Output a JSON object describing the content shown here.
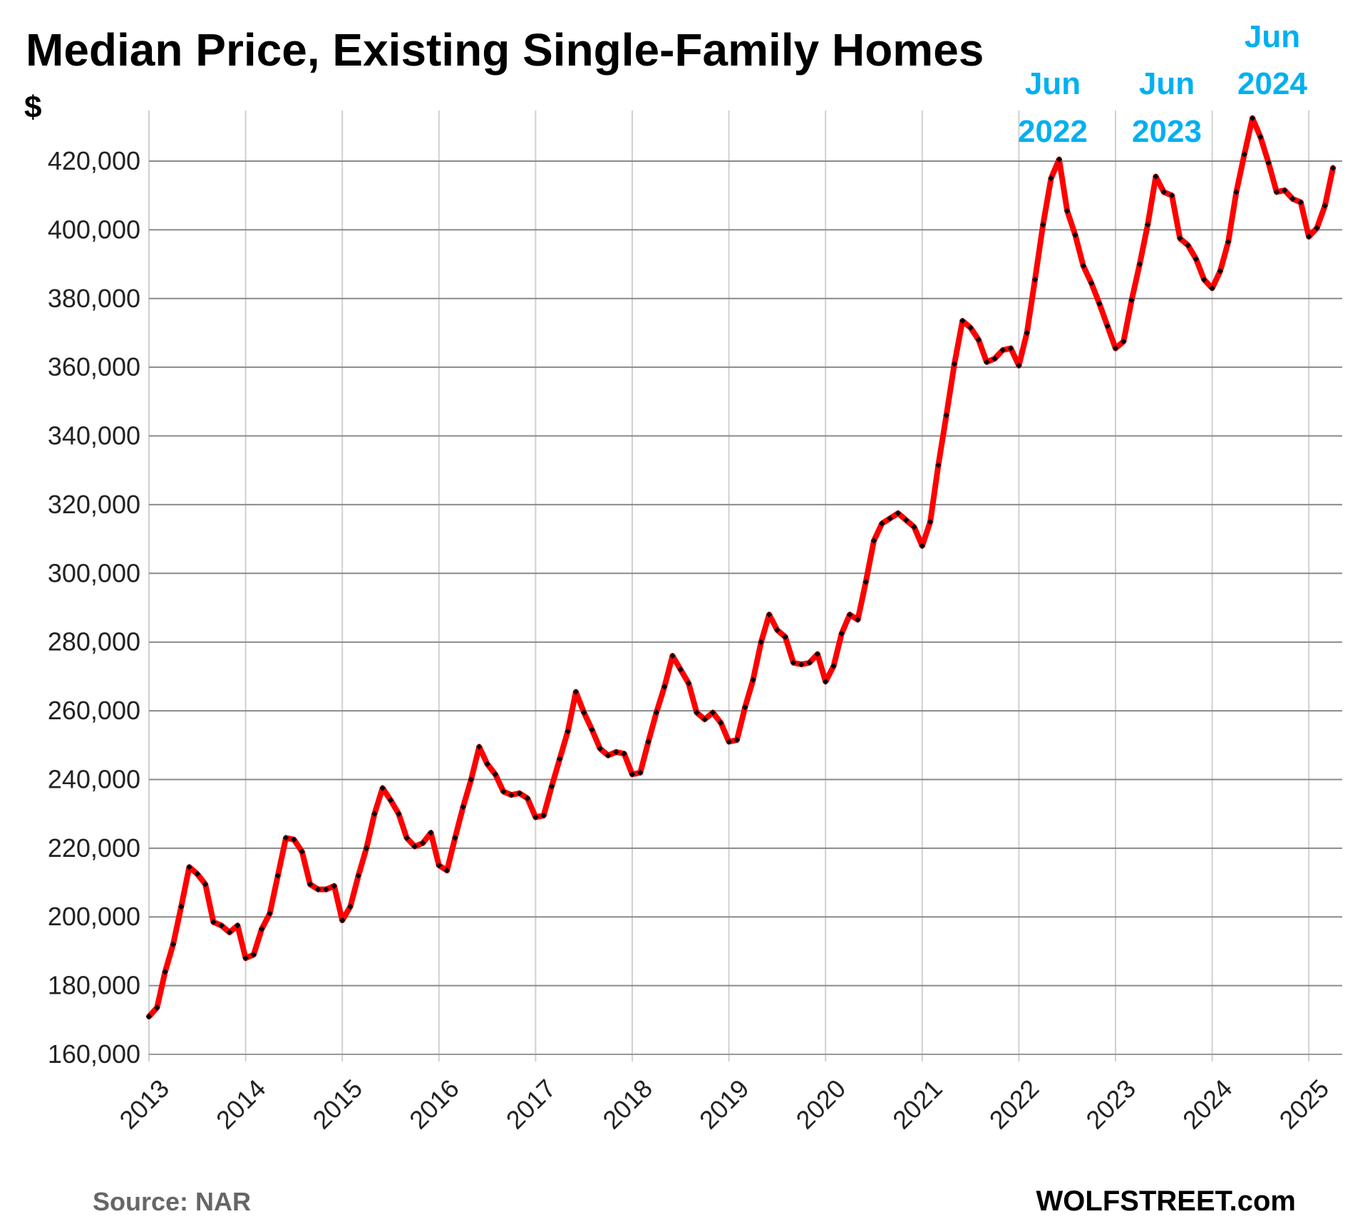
{
  "chart_data": {
    "type": "line",
    "title": "Median Price, Existing Single-Family Homes",
    "ylabel": "$",
    "xlabel": "",
    "ylim": [
      160000,
      432000
    ],
    "yticks": [
      "160,000",
      "180,000",
      "200,000",
      "220,000",
      "240,000",
      "260,000",
      "280,000",
      "300,000",
      "320,000",
      "340,000",
      "360,000",
      "380,000",
      "400,000",
      "420,000"
    ],
    "ytick_values": [
      160000,
      180000,
      200000,
      220000,
      240000,
      260000,
      280000,
      300000,
      320000,
      340000,
      360000,
      380000,
      400000,
      420000
    ],
    "xticks": [
      "2013",
      "2014",
      "2015",
      "2016",
      "2017",
      "2018",
      "2019",
      "2020",
      "2021",
      "2022",
      "2023",
      "2024",
      "2025"
    ],
    "grid": "horizontal and vertical",
    "frequency": "monthly",
    "line_color": "#FF0000",
    "marker_color": "#000000",
    "annotation_color": "#00B0F0",
    "values_by_year": {
      "2013": [
        171000,
        173600,
        184000,
        192000,
        203000,
        214500,
        212500,
        209500,
        198500,
        197500,
        195500,
        197500
      ],
      "2014": [
        188000,
        189000,
        196500,
        201000,
        212000,
        223000,
        222500,
        219000,
        209500,
        208000,
        208000,
        209000
      ],
      "2015": [
        199000,
        203000,
        212000,
        220000,
        230000,
        237500,
        234000,
        230000,
        223000,
        220500,
        221500,
        224500
      ],
      "2016": [
        215000,
        213500,
        223000,
        232000,
        240000,
        249500,
        244500,
        241500,
        236500,
        235500,
        236000,
        234500
      ],
      "2017": [
        229000,
        229500,
        238000,
        246000,
        254000,
        265500,
        259500,
        254500,
        249000,
        247000,
        248000,
        247500
      ],
      "2018": [
        241500,
        242000,
        251000,
        259500,
        267000,
        276000,
        272000,
        268000,
        259500,
        257500,
        259500,
        256500
      ],
      "2019": [
        251000,
        251500,
        261000,
        269000,
        280000,
        288000,
        283500,
        281500,
        274000,
        273500,
        274000,
        276500
      ],
      "2020": [
        268500,
        273000,
        282500,
        288000,
        286500,
        297500,
        309500,
        314500,
        316000,
        317500,
        315500,
        313500
      ],
      "2021": [
        308000,
        315000,
        331500,
        346000,
        361000,
        373500,
        371500,
        368000,
        361500,
        362500,
        365000,
        365500
      ],
      "2022": [
        360500,
        370000,
        385500,
        401500,
        415000,
        420500,
        405500,
        398500,
        389500,
        384500,
        378500,
        372000
      ],
      "2023": [
        365500,
        367500,
        379500,
        390000,
        401500,
        415500,
        411000,
        410000,
        397500,
        395500,
        391500,
        385500
      ],
      "2024": [
        383000,
        388000,
        396500,
        411000,
        422000,
        432500,
        427000,
        419500,
        411000,
        411500,
        409000,
        408000
      ],
      "2025": [
        398000,
        400500,
        407000,
        418000
      ]
    },
    "annotations": [
      {
        "line1": "Jun",
        "line2": "2022",
        "date": "2022-06"
      },
      {
        "line1": "Jun",
        "line2": "2023",
        "date": "2023-06"
      },
      {
        "line1": "Jun",
        "line2": "2024",
        "date": "2024-06"
      }
    ],
    "source": "Source: NAR",
    "brand": "WOLFSTREET.com"
  }
}
